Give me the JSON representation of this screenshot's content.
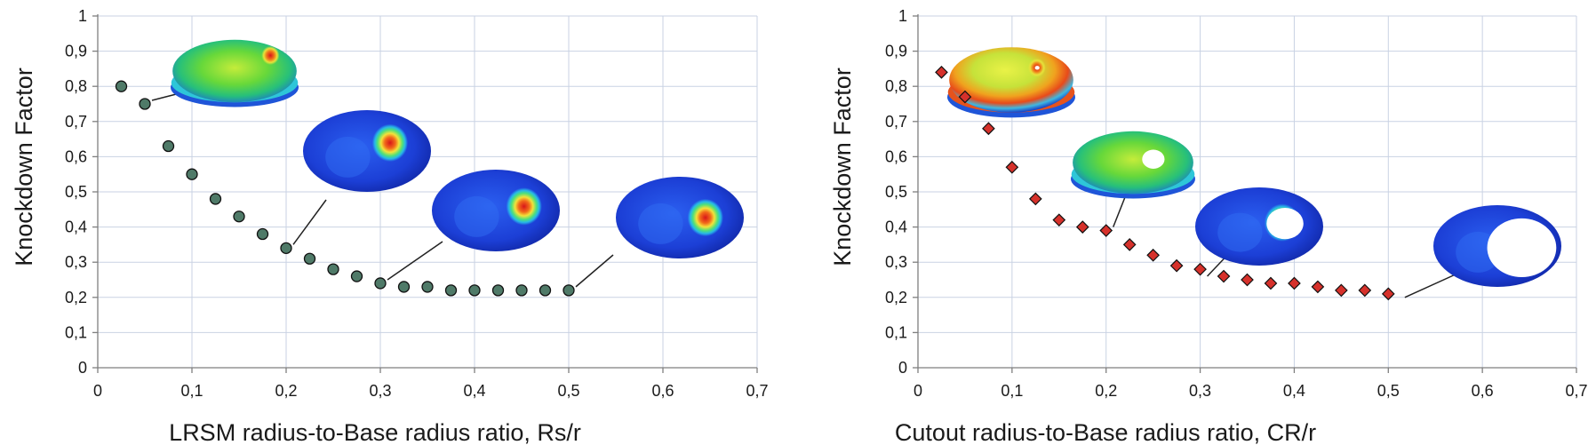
{
  "chart_data": [
    {
      "type": "scatter",
      "marker": "circle",
      "marker_color": "#4f7a68",
      "xlabel": "LRSM radius-to-Base radius ratio, Rs/r",
      "ylabel": "Knockdown Factor",
      "xlim": [
        0,
        0.7
      ],
      "ylim": [
        0,
        1
      ],
      "xticks": [
        "0",
        "0,1",
        "0,2",
        "0,3",
        "0,4",
        "0,5",
        "0,6",
        "0,7"
      ],
      "yticks": [
        "0",
        "0,1",
        "0,2",
        "0,3",
        "0,4",
        "0,5",
        "0,6",
        "0,7",
        "0,8",
        "0,9",
        "1"
      ],
      "x": [
        0.025,
        0.05,
        0.075,
        0.1,
        0.125,
        0.15,
        0.175,
        0.2,
        0.225,
        0.25,
        0.275,
        0.3,
        0.325,
        0.35,
        0.375,
        0.4,
        0.425,
        0.45,
        0.475,
        0.5
      ],
      "y": [
        0.8,
        0.75,
        0.63,
        0.55,
        0.48,
        0.43,
        0.38,
        0.34,
        0.31,
        0.28,
        0.26,
        0.24,
        0.23,
        0.23,
        0.22,
        0.22,
        0.22,
        0.22,
        0.22,
        0.22
      ],
      "insets": [
        {
          "kind": "cap",
          "scheme": "green",
          "spot_x": 0.78,
          "spot_y": 0.3,
          "hole": false,
          "at_x": 0.05,
          "at_y": 0.75
        },
        {
          "kind": "ellipse",
          "scheme": "blue",
          "spot_x": 0.68,
          "spot_y": 0.4,
          "hole": false,
          "at_x": 0.2,
          "at_y": 0.34
        },
        {
          "kind": "ellipse",
          "scheme": "blue",
          "spot_x": 0.72,
          "spot_y": 0.45,
          "hole": false,
          "at_x": 0.3,
          "at_y": 0.24
        },
        {
          "kind": "ellipse",
          "scheme": "blue",
          "spot_x": 0.7,
          "spot_y": 0.5,
          "hole": false,
          "at_x": 0.5,
          "at_y": 0.22
        }
      ]
    },
    {
      "type": "scatter",
      "marker": "diamond",
      "marker_color": "#d6312b",
      "xlabel": "Cutout radius-to-Base radius ratio, CR/r",
      "ylabel": "Knockdown Factor",
      "xlim": [
        0,
        0.7
      ],
      "ylim": [
        0,
        1
      ],
      "xticks": [
        "0",
        "0,1",
        "0,2",
        "0,3",
        "0,4",
        "0,5",
        "0,6",
        "0,7"
      ],
      "yticks": [
        "0",
        "0,1",
        "0,2",
        "0,3",
        "0,4",
        "0,5",
        "0,6",
        "0,7",
        "0,8",
        "0,9",
        "1"
      ],
      "x": [
        0.025,
        0.05,
        0.075,
        0.1,
        0.125,
        0.15,
        0.175,
        0.2,
        0.225,
        0.25,
        0.275,
        0.3,
        0.325,
        0.35,
        0.375,
        0.4,
        0.425,
        0.45,
        0.475,
        0.5
      ],
      "y": [
        0.84,
        0.77,
        0.68,
        0.57,
        0.48,
        0.42,
        0.4,
        0.39,
        0.35,
        0.32,
        0.29,
        0.28,
        0.26,
        0.25,
        0.24,
        0.24,
        0.23,
        0.22,
        0.22,
        0.21
      ],
      "insets": [
        {
          "kind": "cap",
          "scheme": "yellow",
          "spot_x": 0.7,
          "spot_y": 0.35,
          "hole": true,
          "hole_r": 0.02,
          "at_x": 0.055,
          "at_y": 0.75
        },
        {
          "kind": "cap",
          "scheme": "green",
          "spot_x": 0.65,
          "spot_y": 0.45,
          "hole": true,
          "hole_r": 0.1,
          "at_x": 0.2,
          "at_y": 0.39
        },
        {
          "kind": "ellipse",
          "scheme": "blue",
          "spot_x": 0.68,
          "spot_y": 0.45,
          "hole": true,
          "hole_r": 0.16,
          "at_x": 0.3,
          "at_y": 0.25
        },
        {
          "kind": "ellipse",
          "scheme": "blue",
          "spot_x": 0.65,
          "spot_y": 0.5,
          "hole": true,
          "hole_r": 0.3,
          "at_x": 0.51,
          "at_y": 0.19
        }
      ]
    }
  ]
}
